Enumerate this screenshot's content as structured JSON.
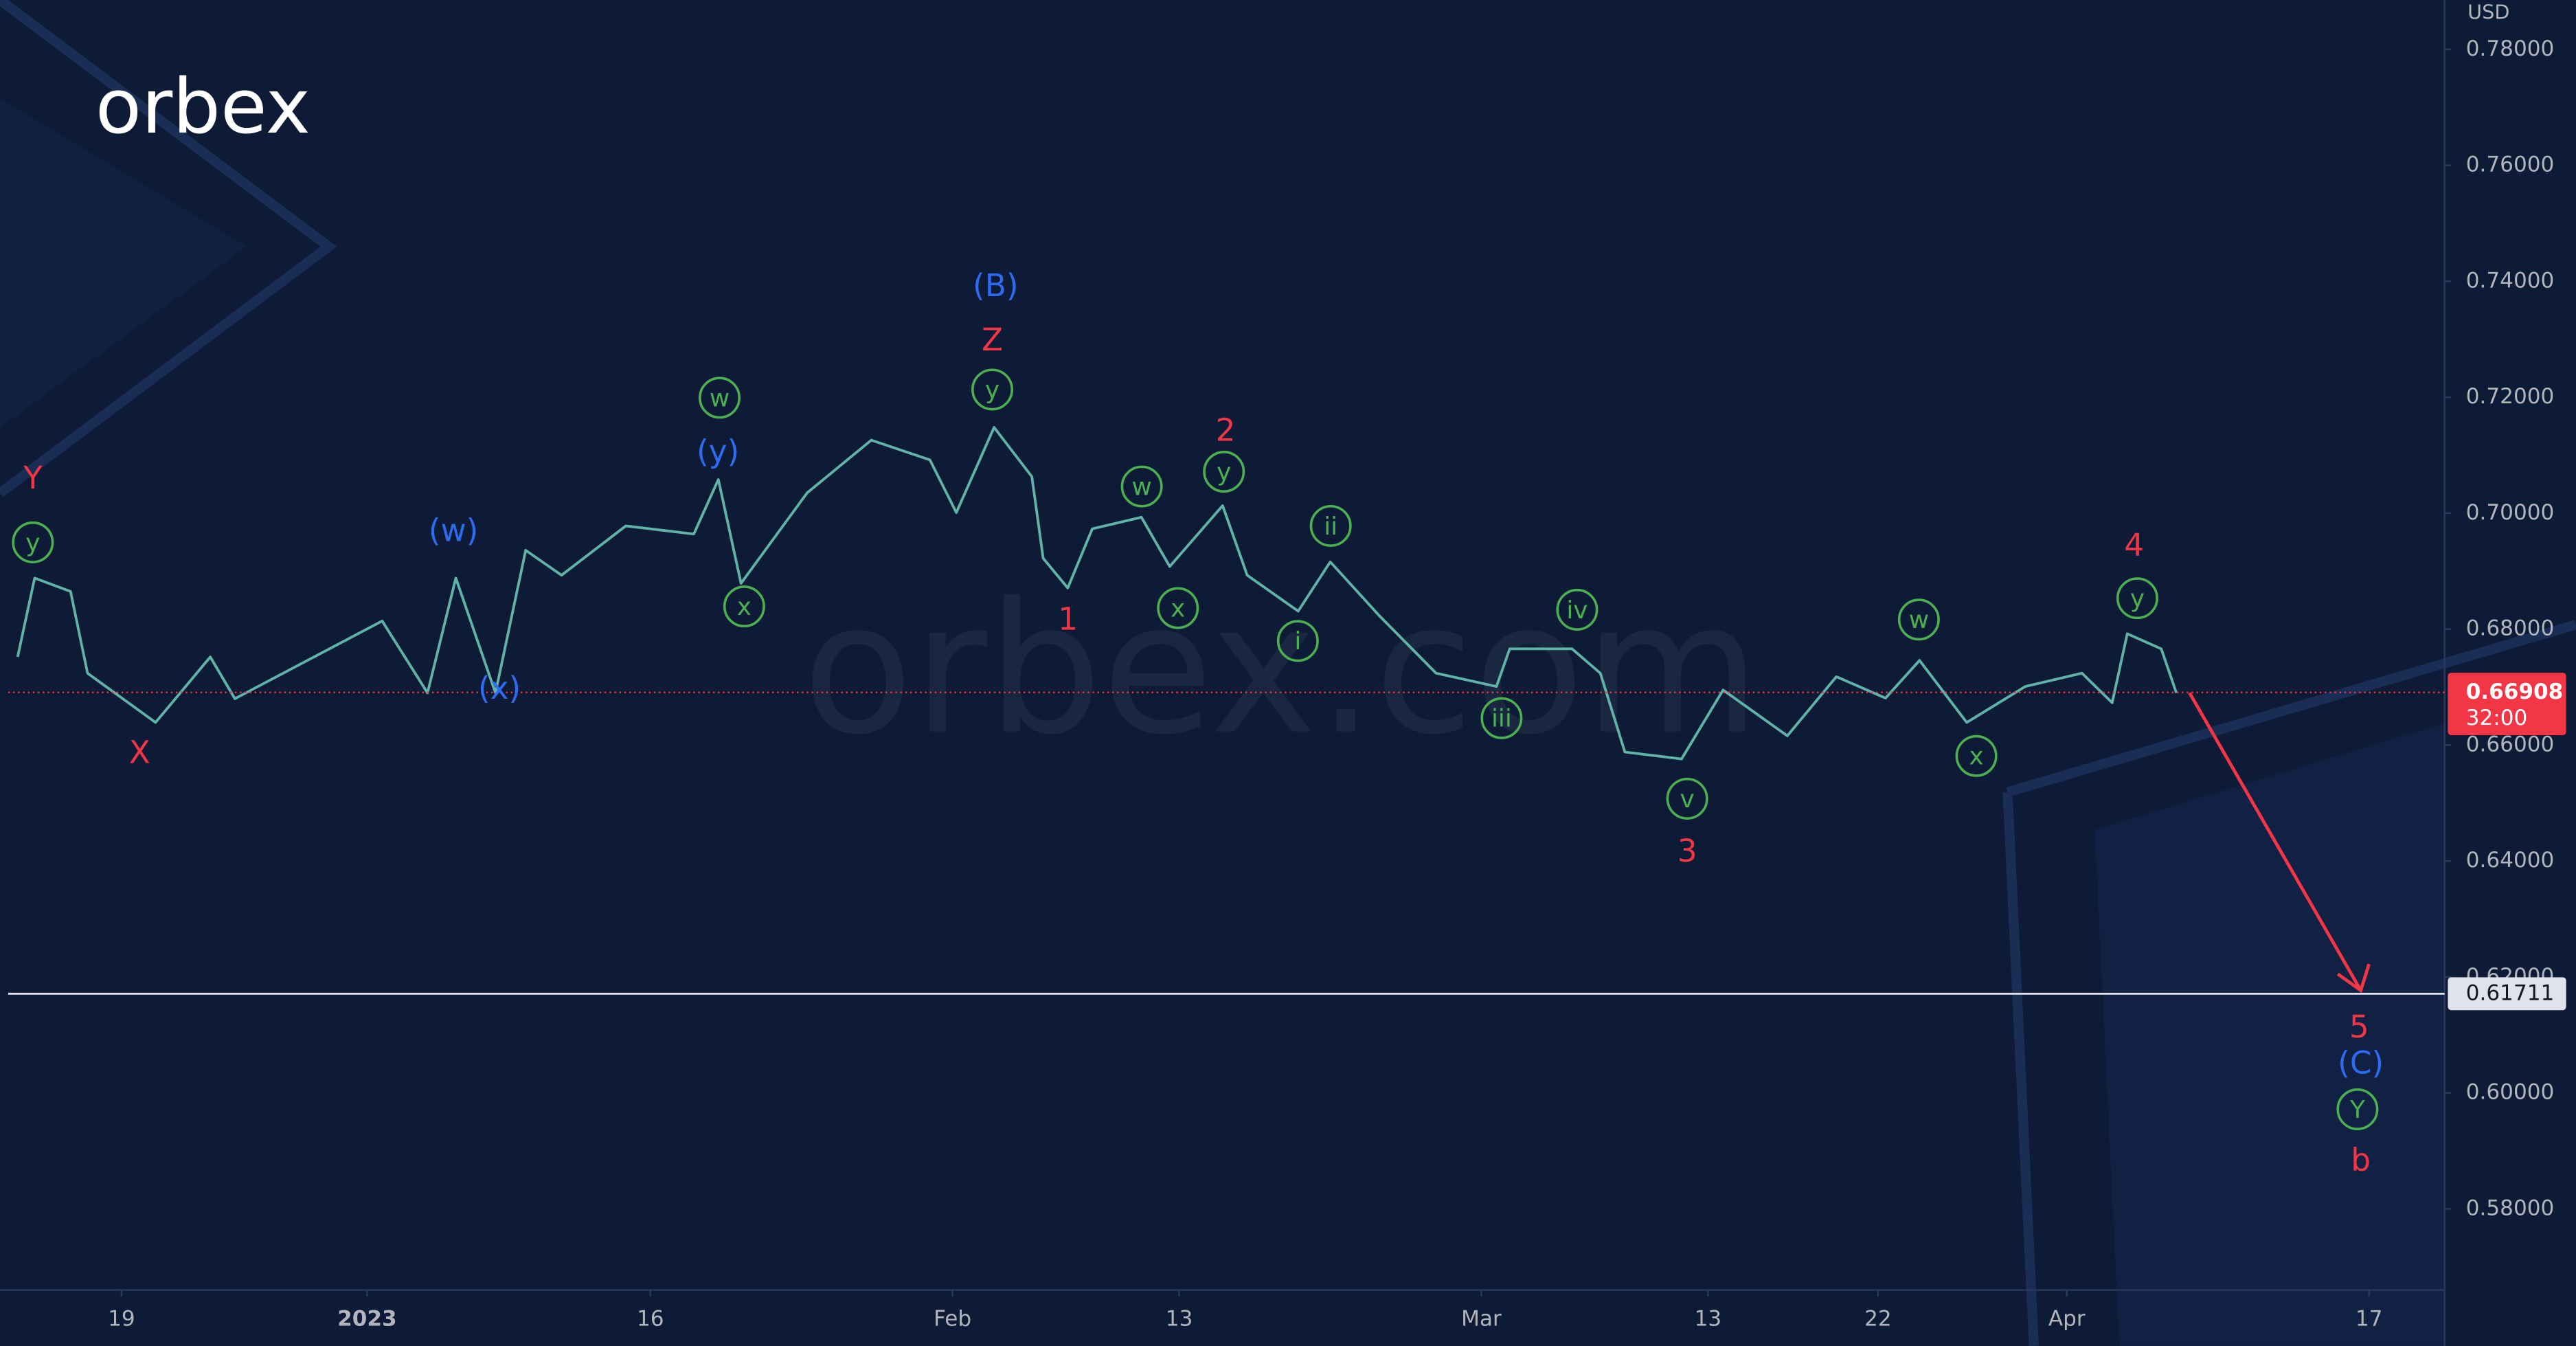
{
  "logo": "orbex",
  "watermark": "orbex.com",
  "chart_data": {
    "type": "line",
    "currency": "USD",
    "xlim": [
      -6,
      123
    ],
    "xticks": [
      {
        "value": 0,
        "label": "19"
      },
      {
        "value": 13,
        "label": "2023"
      },
      {
        "value": 28,
        "label": "16"
      },
      {
        "value": 44,
        "label": "Feb"
      },
      {
        "value": 56,
        "label": "13"
      },
      {
        "value": 72,
        "label": "Mar"
      },
      {
        "value": 84,
        "label": "13"
      },
      {
        "value": 93,
        "label": "22"
      },
      {
        "value": 103,
        "label": "Apr"
      },
      {
        "value": 119,
        "label": "17"
      }
    ],
    "ylim": [
      0.566,
      0.7885
    ],
    "yticks": [
      {
        "value": 0.58,
        "label": "0.58000"
      },
      {
        "value": 0.6,
        "label": "0.60000"
      },
      {
        "value": 0.62,
        "label": "0.62000"
      },
      {
        "value": 0.64,
        "label": "0.64000"
      },
      {
        "value": 0.66,
        "label": "0.66000"
      },
      {
        "value": 0.68,
        "label": "0.68000"
      },
      {
        "value": 0.7,
        "label": "0.70000"
      },
      {
        "value": 0.72,
        "label": "0.72000"
      },
      {
        "value": 0.74,
        "label": "0.74000"
      },
      {
        "value": 0.76,
        "label": "0.76000"
      },
      {
        "value": 0.78,
        "label": "0.78000"
      }
    ],
    "series": [
      {
        "color": "#5fb3a8",
        "x": [
          -5.5,
          -4.6,
          -2.7,
          -1.8,
          1.8,
          4.7,
          6,
          13.8,
          16.2,
          17.7,
          19.8,
          21.4,
          23.3,
          26.7,
          30.3,
          31.6,
          32.8,
          36.3,
          39.7,
          42.8,
          44.2,
          46.2,
          48.2,
          48.8,
          50.1,
          51.4,
          54,
          55.5,
          58.3,
          59.6,
          62.3,
          64,
          66.6,
          69.6,
          72.8,
          73.5,
          76.8,
          78.3,
          79.6,
          82.6,
          84.8,
          88.2,
          90.8,
          93.4,
          95.2,
          97.7,
          100.8,
          103.8,
          105.4,
          106.2,
          108,
          108.8
        ],
        "values": [
          0.6752,
          0.6888,
          0.6865,
          0.6724,
          0.6639,
          0.6752,
          0.668,
          0.6814,
          0.669,
          0.6888,
          0.669,
          0.6936,
          0.6893,
          0.6978,
          0.6964,
          0.7058,
          0.6879,
          0.7035,
          0.7126,
          0.7092,
          0.7001,
          0.7148,
          0.7063,
          0.6922,
          0.6871,
          0.6973,
          0.6993,
          0.6908,
          0.7013,
          0.6893,
          0.6831,
          0.6916,
          0.6823,
          0.6724,
          0.6701,
          0.6766,
          0.6766,
          0.6724,
          0.6588,
          0.6576,
          0.6695,
          0.6616,
          0.6718,
          0.6681,
          0.6746,
          0.6639,
          0.6701,
          0.6724,
          0.6673,
          0.6792,
          0.6766,
          0.669
        ]
      }
    ],
    "current_price": {
      "value": 0.66908,
      "label": "0.66908",
      "countdown": "32:00",
      "color": "#f23645"
    },
    "support": {
      "value": 0.61711,
      "label": "0.61711"
    },
    "annotations": [
      {
        "text": "Y",
        "color": "red"
      },
      {
        "text": "y",
        "color": "green"
      },
      {
        "text": "X",
        "color": "red"
      },
      {
        "text": "(w)",
        "color": "blue"
      },
      {
        "text": "(x)",
        "color": "blue"
      },
      {
        "text": "(y)",
        "color": "blue"
      },
      {
        "text": "w",
        "color": "green"
      },
      {
        "text": "x",
        "color": "green"
      },
      {
        "text": "(B)",
        "color": "blue"
      },
      {
        "text": "Z",
        "color": "red"
      },
      {
        "text": "y",
        "color": "green"
      },
      {
        "text": "1",
        "color": "red"
      },
      {
        "text": "w",
        "color": "green"
      },
      {
        "text": "x",
        "color": "green"
      },
      {
        "text": "2",
        "color": "red"
      },
      {
        "text": "y",
        "color": "green"
      },
      {
        "text": "ii",
        "color": "green"
      },
      {
        "text": "i",
        "color": "green"
      },
      {
        "text": "iii",
        "color": "green"
      },
      {
        "text": "iv",
        "color": "green"
      },
      {
        "text": "v",
        "color": "green"
      },
      {
        "text": "3",
        "color": "red"
      },
      {
        "text": "w",
        "color": "green"
      },
      {
        "text": "x",
        "color": "green"
      },
      {
        "text": "4",
        "color": "red"
      },
      {
        "text": "y",
        "color": "green"
      },
      {
        "text": "5",
        "color": "red"
      },
      {
        "text": "(C)",
        "color": "blue"
      },
      {
        "text": "Y",
        "color": "green"
      },
      {
        "text": "b",
        "color": "red"
      }
    ]
  }
}
